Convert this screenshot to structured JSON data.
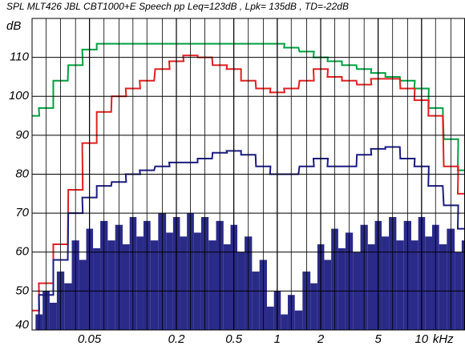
{
  "chart_data": {
    "type": "line",
    "title": "SPL MLT426  JBL CBT1000+E Speech pp   Leq=123dB ,  Lpk= 135dB ,  TD=-22dB",
    "y_label": "dB",
    "x_label": "kHz",
    "log_x": true,
    "grid": true,
    "xlim": [
      0.02,
      20
    ],
    "ylim": [
      40,
      120
    ],
    "xticks": [
      0.05,
      0.2,
      0.5,
      1,
      2,
      5,
      10
    ],
    "yticks": [
      40,
      50,
      60,
      70,
      80,
      90,
      100,
      110
    ],
    "x": [
      0.02,
      0.025,
      0.0315,
      0.04,
      0.05,
      0.063,
      0.08,
      0.1,
      0.125,
      0.16,
      0.2,
      0.25,
      0.315,
      0.4,
      0.5,
      0.63,
      0.8,
      1,
      1.25,
      1.6,
      2,
      2.5,
      3.15,
      4,
      5,
      6.3,
      8,
      10,
      12.5,
      16,
      20
    ],
    "series": [
      {
        "color": "#00a040",
        "values": [
          95,
          97,
          104,
          108,
          112,
          113.5,
          113.5,
          113.5,
          113.5,
          113.5,
          113.5,
          113.5,
          113.5,
          113.5,
          113.5,
          113.5,
          113.5,
          113.5,
          112.5,
          111.5,
          110,
          109,
          108,
          107,
          106,
          105,
          104,
          102,
          97,
          89,
          81
        ]
      },
      {
        "color": "#e02020",
        "values": [
          45,
          52,
          62,
          76,
          88,
          96,
          100,
          102,
          104,
          107,
          109,
          110.5,
          110,
          108,
          107,
          104,
          102,
          101,
          102,
          104,
          107,
          105,
          104,
          103,
          104.5,
          104.5,
          102,
          99,
          95,
          82,
          75
        ]
      },
      {
        "color": "#1c1c80",
        "values": [
          38,
          49,
          58,
          70,
          74,
          77,
          78,
          80,
          81,
          82,
          83,
          83,
          84,
          85.5,
          86,
          85,
          82,
          80,
          80,
          82,
          84,
          82,
          82,
          85,
          86.5,
          87,
          84,
          82,
          77,
          72,
          66
        ]
      }
    ],
    "spectrum": {
      "color": "#2a2a88",
      "x": [
        0.0224,
        0.025,
        0.028,
        0.0315,
        0.0355,
        0.04,
        0.045,
        0.05,
        0.056,
        0.063,
        0.071,
        0.08,
        0.09,
        0.1,
        0.112,
        0.125,
        0.14,
        0.16,
        0.18,
        0.2,
        0.224,
        0.25,
        0.28,
        0.315,
        0.355,
        0.4,
        0.45,
        0.5,
        0.56,
        0.63,
        0.71,
        0.8,
        0.9,
        1,
        1.12,
        1.25,
        1.4,
        1.6,
        1.8,
        2,
        2.24,
        2.5,
        2.8,
        3.15,
        3.55,
        4,
        4.5,
        5,
        5.6,
        6.3,
        7.1,
        8,
        9,
        10,
        11.2,
        12.5,
        14,
        16,
        18,
        20
      ],
      "values": [
        44,
        50,
        47,
        55,
        52,
        63,
        58,
        66,
        61,
        68,
        63,
        67,
        62,
        69,
        64,
        68,
        63,
        70,
        65,
        69,
        64,
        70,
        65,
        69,
        63,
        68,
        62,
        67,
        60,
        64,
        55,
        58,
        46,
        50,
        44,
        49,
        45,
        55,
        52,
        62,
        58,
        66,
        61,
        65,
        60,
        67,
        62,
        68,
        64,
        69,
        63,
        68,
        63,
        69,
        64,
        67,
        62,
        66,
        60,
        63
      ]
    }
  }
}
